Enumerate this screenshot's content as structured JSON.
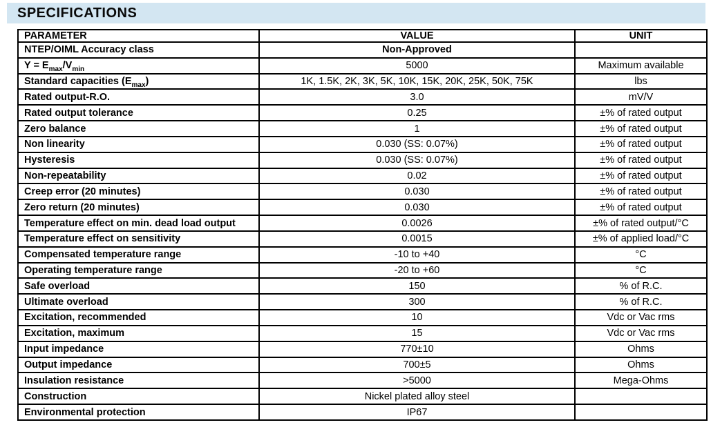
{
  "page_title": "SPECIFICATIONS",
  "colors": {
    "title_bar_bg": "#d3e6f2",
    "table_border": "#000000",
    "text": "#000000"
  },
  "table": {
    "headers": [
      "PARAMETER",
      "VALUE",
      "UNIT"
    ],
    "rows": [
      {
        "param": "NTEP/OIML Accuracy class",
        "value": "Non-Approved",
        "unit": "",
        "value_bold": true
      },
      {
        "param": "Y = E_{max}/V_{min}",
        "value": "5000",
        "unit": "Maximum available"
      },
      {
        "param": "Standard capacities (E_{max})",
        "value": "1K, 1.5K, 2K, 3K, 5K, 10K, 15K, 20K, 25K, 50K, 75K",
        "unit": "lbs"
      },
      {
        "param": "Rated output-R.O.",
        "value": "3.0",
        "unit": "mV/V"
      },
      {
        "param": "Rated output tolerance",
        "value": "0.25",
        "unit": "±% of rated output"
      },
      {
        "param": "Zero balance",
        "value": "1",
        "unit": "±% of rated output"
      },
      {
        "param": "Non linearity",
        "value": "0.030 (SS: 0.07%)",
        "unit": "±% of rated output"
      },
      {
        "param": "Hysteresis",
        "value": "0.030 (SS: 0.07%)",
        "unit": "±% of rated output"
      },
      {
        "param": "Non-repeatability",
        "value": "0.02",
        "unit": "±% of rated output"
      },
      {
        "param": "Creep error (20 minutes)",
        "value": "0.030",
        "unit": "±% of rated output"
      },
      {
        "param": "Zero return (20 minutes)",
        "value": "0.030",
        "unit": "±% of rated output"
      },
      {
        "param": "Temperature effect on min. dead load output",
        "value": "0.0026",
        "unit": "±% of rated output/°C"
      },
      {
        "param": "Temperature effect on sensitivity",
        "value": "0.0015",
        "unit": "±% of applied load/°C"
      },
      {
        "param": "Compensated temperature range",
        "value": "-10 to +40",
        "unit": "°C"
      },
      {
        "param": "Operating temperature range",
        "value": "-20 to +60",
        "unit": "°C"
      },
      {
        "param": "Safe overload",
        "value": "150",
        "unit": "% of R.C."
      },
      {
        "param": "Ultimate overload",
        "value": "300",
        "unit": "% of R.C."
      },
      {
        "param": "Excitation, recommended",
        "value": "10",
        "unit": "Vdc or Vac rms"
      },
      {
        "param": "Excitation, maximum",
        "value": "15",
        "unit": "Vdc or Vac rms"
      },
      {
        "param": "Input impedance",
        "value": "770±10",
        "unit": "Ohms"
      },
      {
        "param": "Output impedance",
        "value": "700±5",
        "unit": "Ohms"
      },
      {
        "param": "Insulation resistance",
        "value": ">5000",
        "unit": "Mega-Ohms"
      },
      {
        "param": "Construction",
        "value": "Nickel plated alloy steel",
        "unit": ""
      },
      {
        "param": "Environmental protection",
        "value": "IP67",
        "unit": ""
      }
    ]
  }
}
